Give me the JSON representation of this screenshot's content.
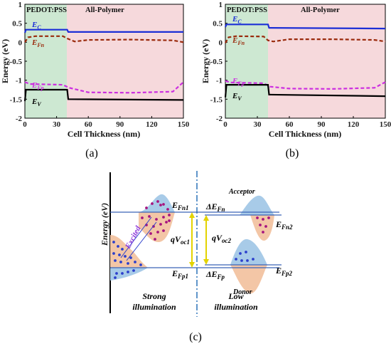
{
  "chart_data": [
    {
      "type": "line",
      "panel": "(a)",
      "xlabel": "Cell Thickness (nm)",
      "ylabel": "Energy (eV)",
      "xlim": [
        0,
        150
      ],
      "ylim": [
        -2,
        1
      ],
      "xticks": [
        0,
        30,
        60,
        90,
        120,
        150
      ],
      "yticks": [
        1,
        0.5,
        0,
        -0.5,
        -1,
        -1.5,
        -2
      ],
      "regions": [
        {
          "label": "PEDOT:PSS",
          "x": [
            0,
            40
          ],
          "color": "#cde8d2"
        },
        {
          "label": "All-Polymer",
          "x": [
            40,
            150
          ],
          "color": "#f6d9dc"
        }
      ],
      "series": [
        {
          "name": "E_C",
          "color": "#1c2fd6",
          "style": "solid",
          "points": [
            [
              0,
              0.25
            ],
            [
              1,
              0.33
            ],
            [
              40,
              0.33
            ],
            [
              41,
              0.27
            ],
            [
              150,
              0.27
            ]
          ]
        },
        {
          "name": "E_Fn",
          "color": "#9a2a0c",
          "style": "dashed",
          "points": [
            [
              0,
              0.0
            ],
            [
              3,
              0.13
            ],
            [
              10,
              0.16
            ],
            [
              36,
              0.16
            ],
            [
              40,
              0.1
            ],
            [
              47,
              0.02
            ],
            [
              60,
              0.06
            ],
            [
              100,
              0.07
            ],
            [
              140,
              0.05
            ],
            [
              150,
              0.0
            ]
          ]
        },
        {
          "name": "E_Fp",
          "color": "#cc2fe0",
          "style": "dashed",
          "points": [
            [
              0,
              -1.05
            ],
            [
              5,
              -1.1
            ],
            [
              36,
              -1.12
            ],
            [
              42,
              -1.2
            ],
            [
              60,
              -1.32
            ],
            [
              100,
              -1.33
            ],
            [
              140,
              -1.3
            ],
            [
              150,
              -1.05
            ]
          ]
        },
        {
          "name": "E_V",
          "color": "#000000",
          "style": "solid",
          "points": [
            [
              0,
              -1.55
            ],
            [
              1,
              -1.25
            ],
            [
              40,
              -1.25
            ],
            [
              41,
              -1.5
            ],
            [
              150,
              -1.52
            ]
          ]
        }
      ]
    },
    {
      "type": "line",
      "panel": "(b)",
      "xlabel": "Cell Thickness (nm)",
      "ylabel": "Energy (eV)",
      "xlim": [
        0,
        150
      ],
      "ylim": [
        -2,
        1
      ],
      "xticks": [
        0,
        30,
        60,
        90,
        120,
        150
      ],
      "yticks": [
        1,
        0.5,
        0,
        -0.5,
        -1,
        -1.5,
        -2
      ],
      "regions": [
        {
          "label": "PEDOT:PSS",
          "x": [
            0,
            40
          ],
          "color": "#cde8d2"
        },
        {
          "label": "All-Polymer",
          "x": [
            40,
            150
          ],
          "color": "#f6d9dc"
        }
      ],
      "series": [
        {
          "name": "E_C",
          "color": "#1c2fd6",
          "style": "solid",
          "points": [
            [
              0,
              0.4
            ],
            [
              1,
              0.47
            ],
            [
              40,
              0.47
            ],
            [
              41,
              0.38
            ],
            [
              150,
              0.36
            ]
          ]
        },
        {
          "name": "E_Fn",
          "color": "#9a2a0c",
          "style": "dashed",
          "points": [
            [
              0,
              -0.02
            ],
            [
              3,
              0.13
            ],
            [
              10,
              0.16
            ],
            [
              36,
              0.15
            ],
            [
              40,
              0.05
            ],
            [
              45,
              0.02
            ],
            [
              60,
              0.08
            ],
            [
              100,
              0.08
            ],
            [
              140,
              0.06
            ],
            [
              150,
              0.02
            ]
          ]
        },
        {
          "name": "E_Fp",
          "color": "#cc2fe0",
          "style": "dashed",
          "points": [
            [
              0,
              -1.02
            ],
            [
              5,
              -1.06
            ],
            [
              36,
              -1.08
            ],
            [
              42,
              -1.17
            ],
            [
              60,
              -1.22
            ],
            [
              100,
              -1.23
            ],
            [
              140,
              -1.2
            ],
            [
              150,
              -1.05
            ]
          ]
        },
        {
          "name": "E_V",
          "color": "#000000",
          "style": "solid",
          "points": [
            [
              0,
              -1.45
            ],
            [
              1,
              -1.12
            ],
            [
              40,
              -1.12
            ],
            [
              41,
              -1.38
            ],
            [
              150,
              -1.42
            ]
          ]
        }
      ]
    }
  ],
  "panel_labels": {
    "a": "(a)",
    "b": "(b)",
    "c": "(c)"
  },
  "regions": {
    "left": "PEDOT:PSS",
    "right": "All-Polymer"
  },
  "series_labels": {
    "ec": {
      "base": "E",
      "sub": "C"
    },
    "efn": {
      "base": "E",
      "sub": "Fn"
    },
    "efp": {
      "base": "E",
      "sub": "Fp"
    },
    "ev": {
      "base": "E",
      "sub": "V"
    }
  },
  "diagram_c": {
    "ylabel": "Energy (eV)",
    "excited": "Excited",
    "efn1": {
      "base": "E",
      "sub": "Fn1"
    },
    "efp1": {
      "base": "E",
      "sub": "Fp1"
    },
    "efn2": {
      "base": "E",
      "sub": "Fn2"
    },
    "efp2": {
      "base": "E",
      "sub": "Fp2"
    },
    "qvoc1": {
      "base": "qV",
      "sub": "oc1"
    },
    "qvoc2": {
      "base": "qV",
      "sub": "oc2"
    },
    "dEfn": {
      "base": "ΔE",
      "sub": "Fn"
    },
    "dEfp": {
      "base": "ΔE",
      "sub": "Fp"
    },
    "acceptor": "Acceptor",
    "donor": "Donor",
    "strong_line1": "Strong",
    "strong_line2": "illumination",
    "low_line1": "Low",
    "low_line2": "illumination",
    "colors": {
      "acceptor": "#a8cbe8",
      "donor": "#f3c6a6",
      "dots": "#a7147f",
      "blue_dots": "#2c3fcc",
      "yellow": "#e3d300"
    }
  }
}
